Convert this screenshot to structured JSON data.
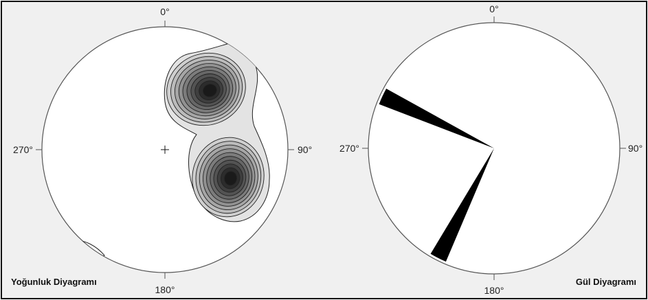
{
  "colors": {
    "background": "#f0f0f0",
    "frame": "#111111",
    "circle_fill": "#ffffff",
    "circle_stroke": "#555555",
    "contour_stroke": "#222222",
    "contour_shades": [
      "#e3e3e3",
      "#cfcfcf",
      "#bbbbbb",
      "#a6a6a6",
      "#919191",
      "#7c7c7c",
      "#676767",
      "#535353",
      "#3f3f3f",
      "#2c2c2c",
      "#1a1a1a"
    ],
    "rose_fill": "#000000"
  },
  "density_panel": {
    "title": "Yoğunluk Diyagramı",
    "labels": {
      "north": "0°",
      "east": "90°",
      "south": "180°",
      "west": "270°"
    },
    "center_icon": "plus-marker-icon"
  },
  "rose_panel": {
    "title": "Gül Diyagramı",
    "labels": {
      "north": "0°",
      "east": "90°",
      "south": "180°",
      "west": "270°"
    },
    "petals": [
      {
        "azimuth_deg": 295,
        "width_deg": 8,
        "radius_fraction": 0.98
      },
      {
        "azimuth_deg": 207,
        "width_deg": 8,
        "radius_fraction": 0.98
      }
    ]
  }
}
